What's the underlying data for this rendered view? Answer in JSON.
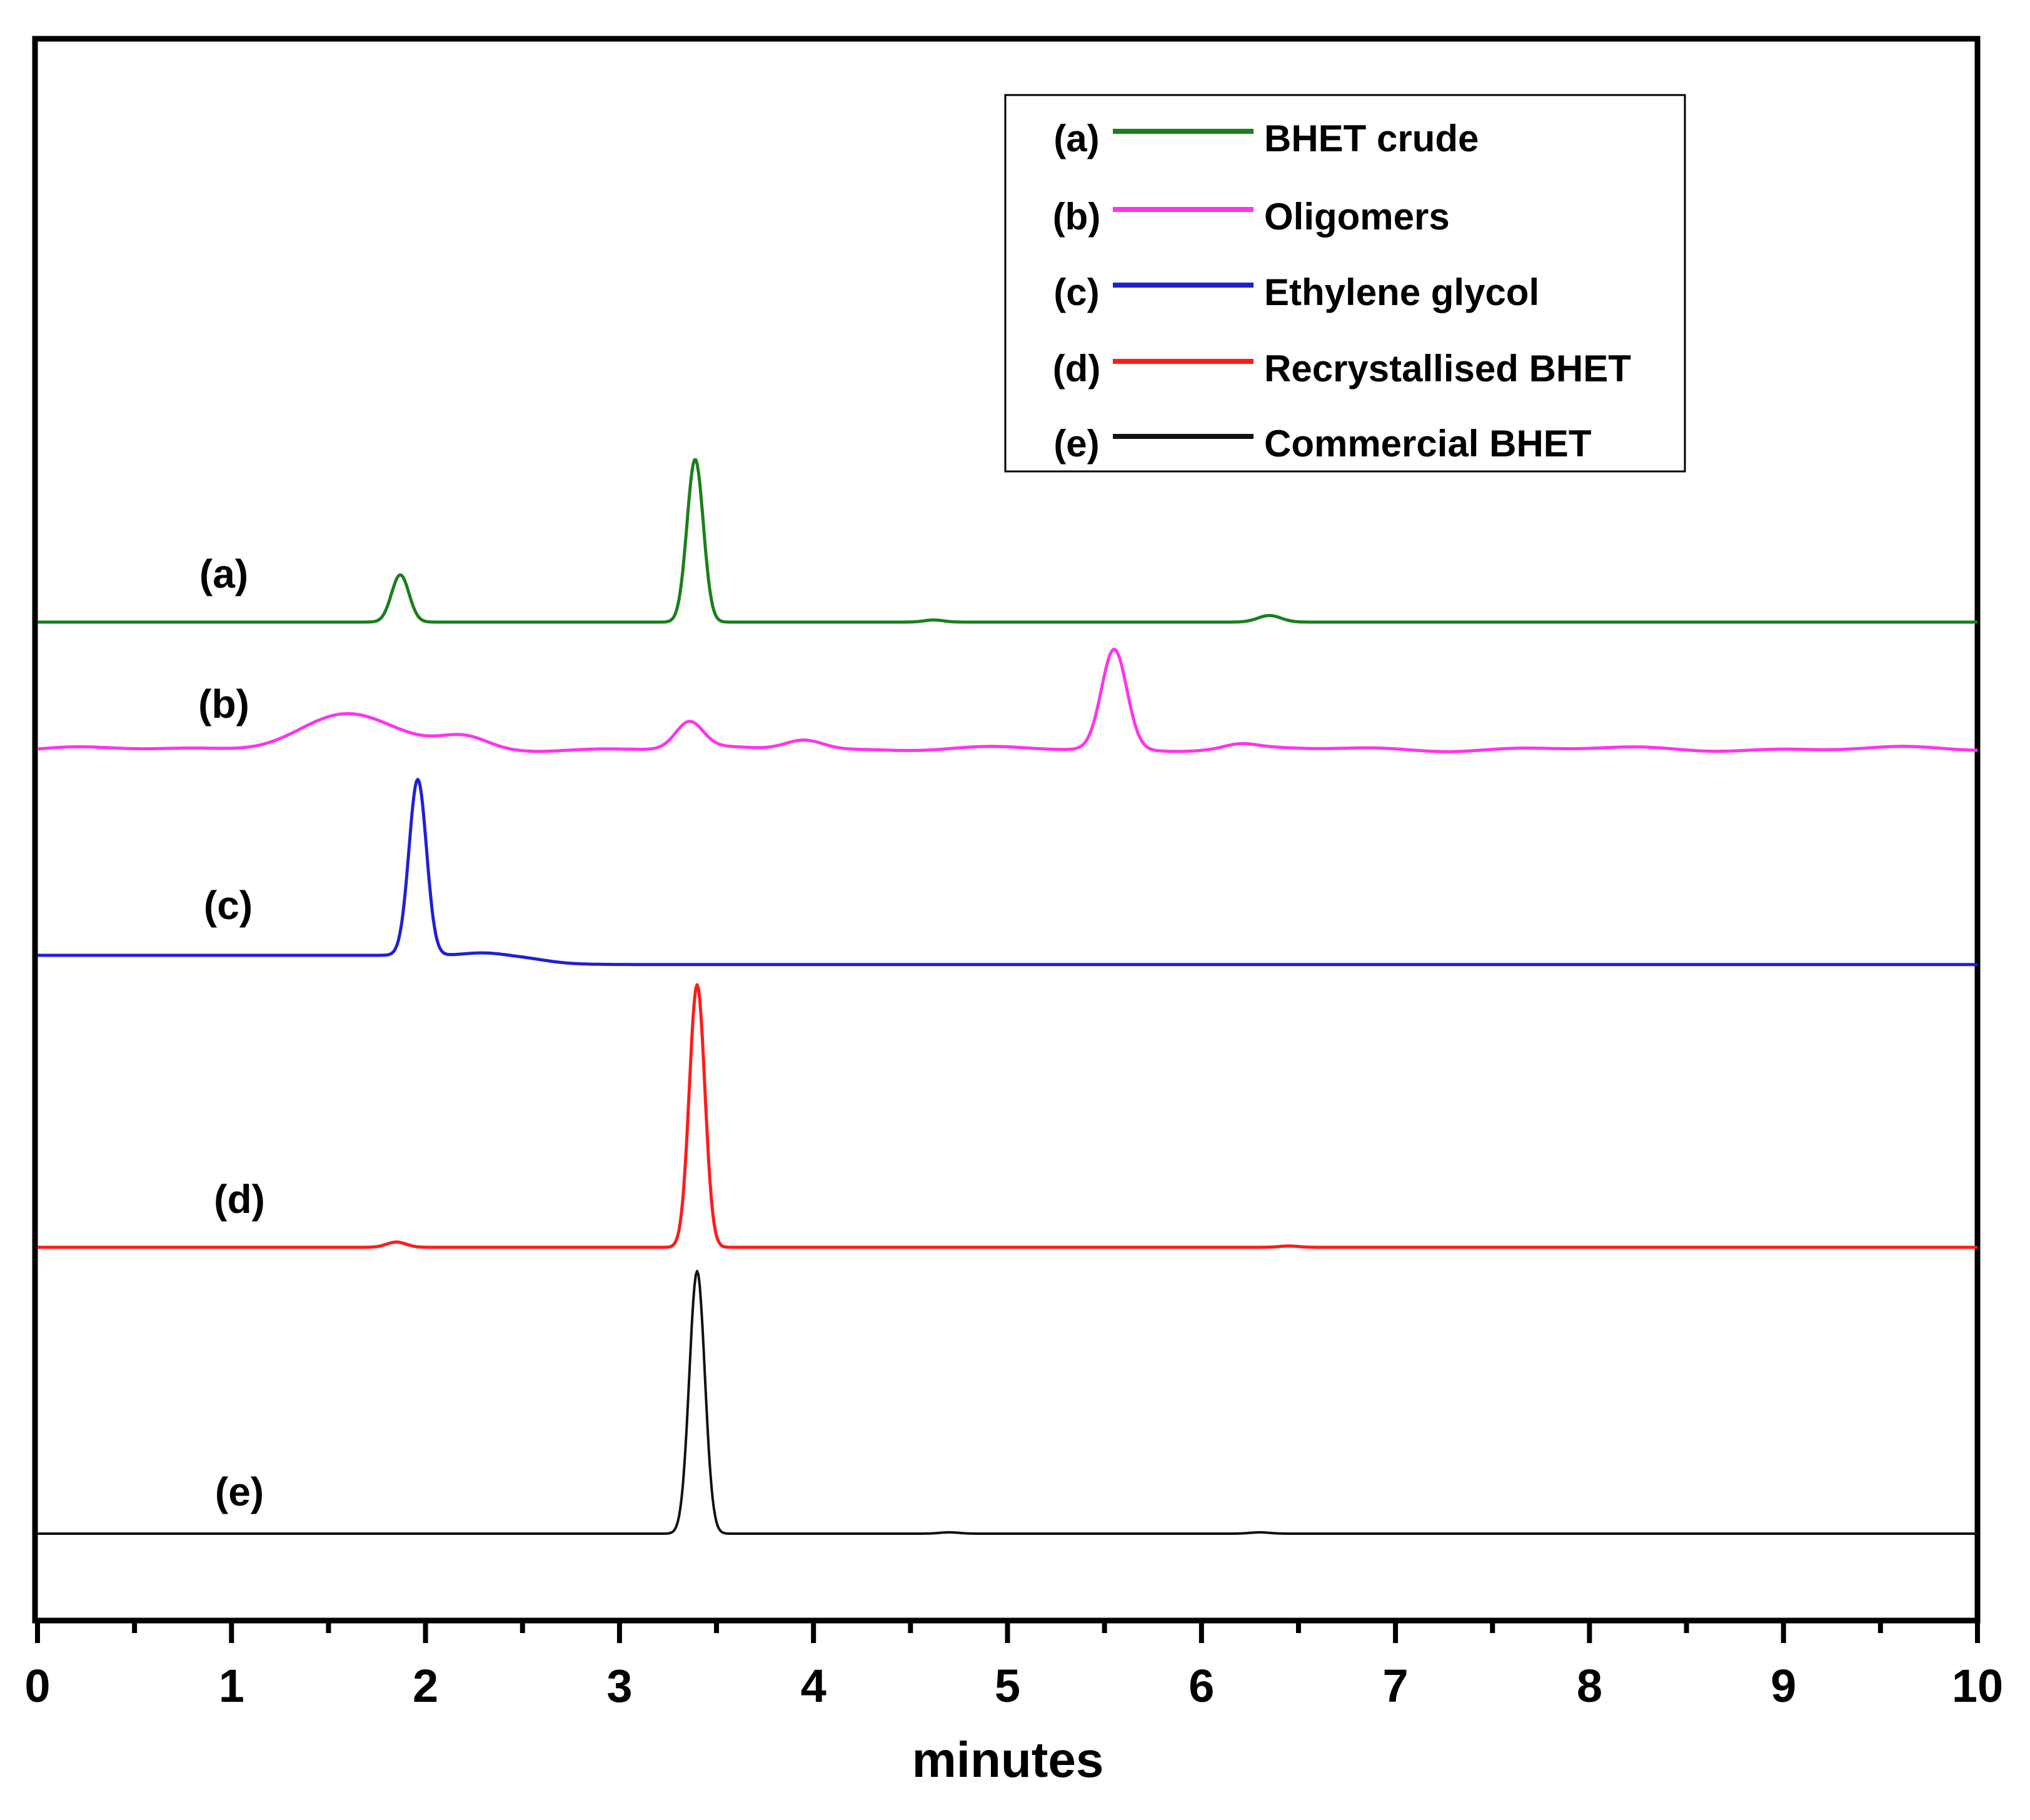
{
  "chart_data": {
    "type": "line",
    "xlabel": "minutes",
    "ylabel": "",
    "xlim": [
      0,
      10
    ],
    "x_ticks": [
      "0",
      "1",
      "2",
      "3",
      "4",
      "5",
      "6",
      "7",
      "8",
      "9",
      "10"
    ],
    "grid": false,
    "legend_position": "top-right",
    "series": [
      {
        "id": "a",
        "label": "(a)",
        "name": "BHET crude",
        "color": "#1a7f1a",
        "baseline": 0,
        "peaks": [
          {
            "x": 1.87,
            "height": 0.18,
            "width": 0.045
          },
          {
            "x": 3.39,
            "height": 0.62,
            "width": 0.042
          },
          {
            "x": 4.62,
            "height": 0.008,
            "width": 0.05
          },
          {
            "x": 6.35,
            "height": 0.025,
            "width": 0.06
          }
        ]
      },
      {
        "id": "b",
        "label": "(b)",
        "name": "Oligomers",
        "color": "#ff33ee",
        "baseline": 0,
        "peaks": [
          {
            "x": 1.6,
            "height": 0.13,
            "width": 0.25
          },
          {
            "x": 2.2,
            "height": 0.04,
            "width": 0.12
          },
          {
            "x": 3.36,
            "height": 0.1,
            "width": 0.07
          },
          {
            "x": 3.95,
            "height": 0.04,
            "width": 0.1
          },
          {
            "x": 5.55,
            "height": 0.38,
            "width": 0.065
          },
          {
            "x": 6.2,
            "height": 0.015,
            "width": 0.08
          }
        ]
      },
      {
        "id": "c",
        "label": "(c)",
        "name": "Ethylene glycol",
        "color": "#1f1fd6",
        "baseline": 0,
        "baseline_shift": -0.035,
        "peaks": [
          {
            "x": 1.96,
            "height": 0.67,
            "width": 0.045
          },
          {
            "x": 2.3,
            "height": 0.01,
            "width": 0.1
          }
        ]
      },
      {
        "id": "d",
        "label": "(d)",
        "name": "Recrystallised BHET",
        "color": "#ff1a1a",
        "baseline": 0,
        "peaks": [
          {
            "x": 1.85,
            "height": 0.02,
            "width": 0.05
          },
          {
            "x": 3.4,
            "height": 1.0,
            "width": 0.04
          },
          {
            "x": 6.45,
            "height": 0.005,
            "width": 0.05
          }
        ]
      },
      {
        "id": "e",
        "label": "(e)",
        "name": "Commercial BHET",
        "color": "#111111",
        "baseline": 0,
        "peaks": [
          {
            "x": 3.4,
            "height": 1.0,
            "width": 0.04
          },
          {
            "x": 4.7,
            "height": 0.005,
            "width": 0.05
          },
          {
            "x": 6.3,
            "height": 0.005,
            "width": 0.05
          }
        ]
      }
    ]
  }
}
